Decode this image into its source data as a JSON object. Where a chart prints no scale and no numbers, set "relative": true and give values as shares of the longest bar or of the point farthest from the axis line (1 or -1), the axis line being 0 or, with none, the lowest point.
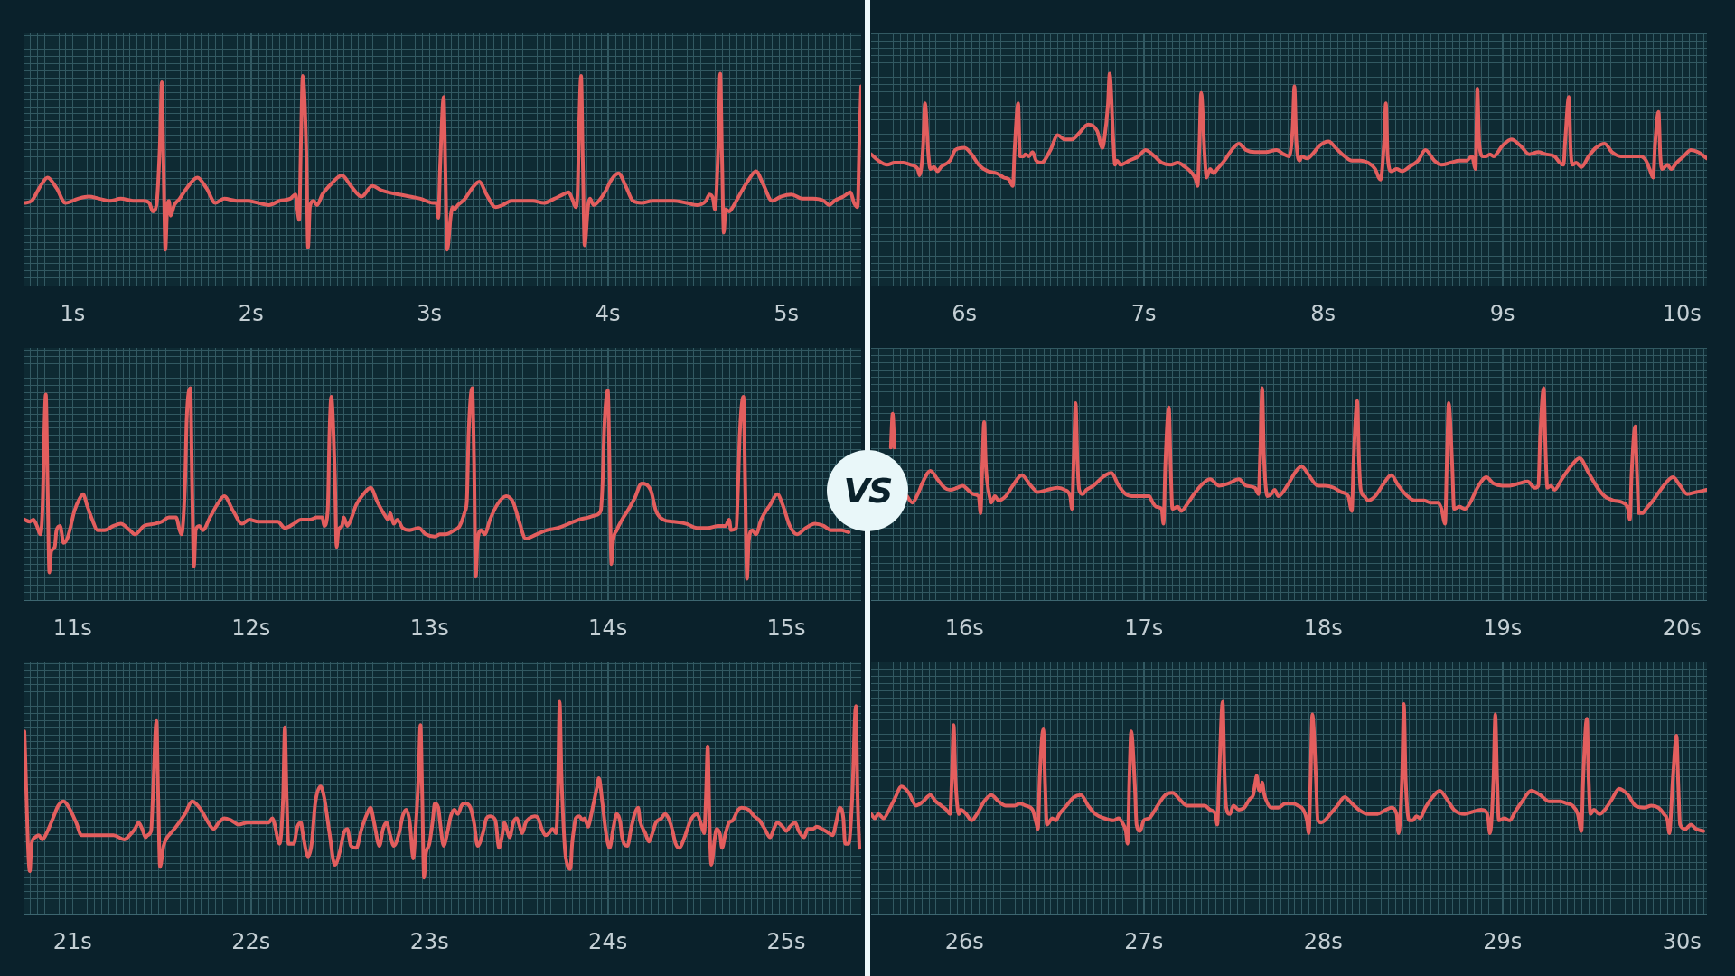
{
  "chart_data": [
    {
      "type": "line",
      "color": "#e35e5e",
      "relative": true,
      "grid": true,
      "xlim": [
        0.73,
        5.42
      ],
      "xticks": [
        {
          "value": 1,
          "label": "1s"
        },
        {
          "value": 2,
          "label": "2s"
        },
        {
          "value": 3,
          "label": "3s"
        },
        {
          "value": 4,
          "label": "4s"
        },
        {
          "value": 5,
          "label": "5s"
        }
      ],
      "x": [
        0.73,
        0.77,
        0.82,
        0.86,
        0.91,
        0.96,
        1.03,
        1.09,
        1.15,
        1.21,
        1.27,
        1.34,
        1.4,
        1.43,
        1.45,
        1.47,
        1.49,
        1.5,
        1.51,
        1.52,
        1.53,
        1.54,
        1.55,
        1.57,
        1.6,
        1.64,
        1.7,
        1.75,
        1.8,
        1.85,
        1.92,
        1.98,
        2.04,
        2.1,
        2.16,
        2.22,
        2.25,
        2.26,
        2.27,
        2.28,
        2.29,
        2.31,
        2.32,
        2.33,
        2.35,
        2.37,
        2.4,
        2.45,
        2.51,
        2.56,
        2.62,
        2.68,
        2.73,
        2.77,
        2.83,
        2.89,
        2.95,
        3.02,
        3.04,
        3.05,
        3.06,
        3.08,
        3.09,
        3.1,
        3.12,
        3.13,
        3.14,
        3.16,
        3.2,
        3.24,
        3.28,
        3.32,
        3.37,
        3.41,
        3.46,
        3.52,
        3.58,
        3.64,
        3.7,
        3.75,
        3.78,
        3.8,
        3.82,
        3.83,
        3.84,
        3.85,
        3.86,
        3.87,
        3.89,
        3.9,
        3.92,
        3.95,
        3.99,
        4.02,
        4.06,
        4.1,
        4.14,
        4.19,
        4.25,
        4.31,
        4.37,
        4.44,
        4.5,
        4.55,
        4.57,
        4.59,
        4.6,
        4.62,
        4.63,
        4.64,
        4.65,
        4.66,
        4.68,
        4.7,
        4.74,
        4.79,
        4.83,
        4.87,
        4.92,
        4.97,
        5.03,
        5.09,
        5.15,
        5.21,
        5.24,
        5.27,
        5.32,
        5.36,
        5.38,
        5.4,
        5.41,
        5.42
      ],
      "values": [
        0.39,
        0.4,
        0.47,
        0.51,
        0.46,
        0.39,
        0.41,
        0.42,
        0.41,
        0.4,
        0.41,
        0.4,
        0.4,
        0.39,
        0.35,
        0.38,
        0.68,
        0.96,
        0.56,
        0.17,
        0.36,
        0.4,
        0.33,
        0.38,
        0.41,
        0.46,
        0.51,
        0.46,
        0.39,
        0.41,
        0.4,
        0.4,
        0.39,
        0.38,
        0.4,
        0.41,
        0.43,
        0.36,
        0.31,
        0.68,
        0.99,
        0.63,
        0.18,
        0.37,
        0.4,
        0.38,
        0.43,
        0.48,
        0.52,
        0.47,
        0.42,
        0.47,
        0.45,
        0.44,
        0.43,
        0.42,
        0.41,
        0.39,
        0.39,
        0.32,
        0.56,
        0.89,
        0.53,
        0.17,
        0.33,
        0.37,
        0.36,
        0.38,
        0.41,
        0.46,
        0.49,
        0.43,
        0.37,
        0.38,
        0.4,
        0.4,
        0.4,
        0.39,
        0.41,
        0.43,
        0.44,
        0.41,
        0.37,
        0.43,
        0.78,
        0.99,
        0.58,
        0.19,
        0.38,
        0.41,
        0.38,
        0.4,
        0.45,
        0.5,
        0.53,
        0.47,
        0.4,
        0.39,
        0.4,
        0.4,
        0.4,
        0.39,
        0.38,
        0.4,
        0.43,
        0.41,
        0.36,
        0.68,
        1,
        0.61,
        0.25,
        0.36,
        0.35,
        0.37,
        0.43,
        0.5,
        0.54,
        0.48,
        0.4,
        0.42,
        0.43,
        0.41,
        0.41,
        0.4,
        0.38,
        0.4,
        0.42,
        0.44,
        0.39,
        0.37,
        0.68,
        0.94
      ]
    },
    {
      "type": "line",
      "color": "#e35e5e",
      "relative": true,
      "grid": true,
      "xlim": [
        5.48,
        10.14
      ],
      "xticks": [
        {
          "value": 6,
          "label": "6s"
        },
        {
          "value": 7,
          "label": "7s"
        },
        {
          "value": 8,
          "label": "8s"
        },
        {
          "value": 9,
          "label": "9s"
        },
        {
          "value": 10,
          "label": "10s"
        }
      ],
      "x": [
        5.48,
        5.52,
        5.57,
        5.61,
        5.66,
        5.7,
        5.74,
        5.75,
        5.77,
        5.78,
        5.8,
        5.81,
        5.83,
        5.85,
        5.87,
        5.92,
        5.95,
        6.0,
        6.04,
        6.08,
        6.13,
        6.18,
        6.22,
        6.25,
        6.27,
        6.28,
        6.3,
        6.31,
        6.33,
        6.34,
        6.36,
        6.38,
        6.4,
        6.43,
        6.48,
        6.52,
        6.56,
        6.6,
        6.64,
        6.69,
        6.74,
        6.77,
        6.78,
        6.8,
        6.81,
        6.83,
        6.84,
        6.85,
        6.87,
        6.92,
        6.97,
        7.01,
        7.06,
        7.1,
        7.15,
        7.19,
        7.23,
        7.27,
        7.29,
        7.3,
        7.31,
        7.32,
        7.34,
        7.35,
        7.37,
        7.39,
        7.41,
        7.45,
        7.49,
        7.53,
        7.57,
        7.62,
        7.68,
        7.74,
        7.78,
        7.81,
        7.83,
        7.84,
        7.85,
        7.87,
        7.88,
        7.91,
        7.94,
        7.98,
        8.03,
        8.07,
        8.12,
        8.16,
        8.21,
        8.25,
        8.29,
        8.31,
        8.32,
        8.34,
        8.35,
        8.36,
        8.38,
        8.41,
        8.44,
        8.48,
        8.53,
        8.57,
        8.62,
        8.66,
        8.71,
        8.76,
        8.8,
        8.83,
        8.85,
        8.86,
        8.87,
        8.89,
        8.91,
        8.93,
        8.95,
        9.0,
        9.05,
        9.1,
        9.15,
        9.2,
        9.24,
        9.29,
        9.32,
        9.34,
        9.35,
        9.37,
        9.38,
        9.39,
        9.41,
        9.44,
        9.48,
        9.52,
        9.57,
        9.61,
        9.66,
        9.71,
        9.77,
        9.8,
        9.82,
        9.84,
        9.85,
        9.87,
        9.88,
        9.89,
        9.92,
        9.94,
        9.97,
        10.01,
        10.05,
        10.09,
        10.14
      ],
      "values": [
        0.62,
        0.59,
        0.57,
        0.58,
        0.58,
        0.57,
        0.55,
        0.52,
        0.66,
        0.86,
        0.61,
        0.55,
        0.56,
        0.54,
        0.56,
        0.59,
        0.64,
        0.65,
        0.62,
        0.57,
        0.54,
        0.53,
        0.51,
        0.5,
        0.47,
        0.64,
        0.86,
        0.61,
        0.61,
        0.62,
        0.61,
        0.63,
        0.59,
        0.58,
        0.64,
        0.71,
        0.69,
        0.69,
        0.72,
        0.76,
        0.73,
        0.65,
        0.69,
        0.85,
        1,
        0.69,
        0.57,
        0.59,
        0.57,
        0.59,
        0.61,
        0.64,
        0.61,
        0.58,
        0.57,
        0.58,
        0.56,
        0.53,
        0.5,
        0.47,
        0.66,
        0.91,
        0.61,
        0.51,
        0.55,
        0.53,
        0.55,
        0.59,
        0.64,
        0.67,
        0.64,
        0.63,
        0.63,
        0.64,
        0.62,
        0.61,
        0.74,
        0.94,
        0.69,
        0.59,
        0.61,
        0.6,
        0.62,
        0.66,
        0.68,
        0.65,
        0.61,
        0.59,
        0.59,
        0.58,
        0.55,
        0.51,
        0.5,
        0.68,
        0.86,
        0.61,
        0.54,
        0.55,
        0.54,
        0.56,
        0.59,
        0.64,
        0.59,
        0.57,
        0.58,
        0.59,
        0.59,
        0.61,
        0.55,
        0.93,
        0.68,
        0.61,
        0.61,
        0.62,
        0.61,
        0.66,
        0.69,
        0.66,
        0.62,
        0.63,
        0.62,
        0.61,
        0.58,
        0.57,
        0.69,
        0.89,
        0.64,
        0.57,
        0.58,
        0.56,
        0.61,
        0.65,
        0.67,
        0.63,
        0.61,
        0.61,
        0.61,
        0.59,
        0.55,
        0.51,
        0.66,
        0.82,
        0.61,
        0.55,
        0.57,
        0.55,
        0.58,
        0.61,
        0.64,
        0.63,
        0.6
      ]
    },
    {
      "type": "line",
      "color": "#e35e5e",
      "relative": true,
      "grid": true,
      "xlim": [
        10.73,
        15.42
      ],
      "xticks": [
        {
          "value": 11,
          "label": "11s"
        },
        {
          "value": 12,
          "label": "12s"
        },
        {
          "value": 13,
          "label": "13s"
        },
        {
          "value": 14,
          "label": "14s"
        },
        {
          "value": 15,
          "label": "15s"
        }
      ],
      "annotations": [
        "VS"
      ],
      "x": [
        10.73,
        10.76,
        10.78,
        10.8,
        10.82,
        10.83,
        10.85,
        10.86,
        10.87,
        10.88,
        10.9,
        10.91,
        10.93,
        10.95,
        10.97,
        10.99,
        11.01,
        11.04,
        11.06,
        11.08,
        11.11,
        11.14,
        11.18,
        11.23,
        11.27,
        11.32,
        11.35,
        11.4,
        11.46,
        11.5,
        11.54,
        11.58,
        11.6,
        11.61,
        11.63,
        11.64,
        11.66,
        11.67,
        11.68,
        11.69,
        11.71,
        11.73,
        11.77,
        11.81,
        11.85,
        11.9,
        11.95,
        11.99,
        12.04,
        12.1,
        12.15,
        12.19,
        12.24,
        12.28,
        12.33,
        12.37,
        12.4,
        12.41,
        12.43,
        12.44,
        12.45,
        12.47,
        12.48,
        12.49,
        12.51,
        12.52,
        12.54,
        12.56,
        12.59,
        12.63,
        12.67,
        12.71,
        12.75,
        12.77,
        12.78,
        12.8,
        12.82,
        12.85,
        12.89,
        12.94,
        12.98,
        13.03,
        13.06,
        13.09,
        13.14,
        13.17,
        13.2,
        13.21,
        13.22,
        13.24,
        13.25,
        13.26,
        13.27,
        13.29,
        13.31,
        13.34,
        13.38,
        13.43,
        13.47,
        13.5,
        13.54,
        13.6,
        13.66,
        13.72,
        13.78,
        13.84,
        13.89,
        13.93,
        13.96,
        13.97,
        13.98,
        14.0,
        14.01,
        14.02,
        14.03,
        14.05,
        14.08,
        14.11,
        14.15,
        14.19,
        14.24,
        14.27,
        14.31,
        14.37,
        14.44,
        14.5,
        14.56,
        14.62,
        14.66,
        14.68,
        14.69,
        14.72,
        14.73,
        14.74,
        14.76,
        14.77,
        14.78,
        14.79,
        14.81,
        14.83,
        14.86,
        14.91,
        14.95,
        14.98,
        15.02,
        15.06,
        15.11,
        15.16,
        15.21,
        15.25,
        15.31,
        15.35
      ],
      "values": [
        0.38,
        0.37,
        0.38,
        0.35,
        0.31,
        0.4,
        0.97,
        0.54,
        0.13,
        0.23,
        0.25,
        0.33,
        0.35,
        0.27,
        0.29,
        0.35,
        0.42,
        0.48,
        0.5,
        0.45,
        0.38,
        0.33,
        0.33,
        0.35,
        0.36,
        0.33,
        0.31,
        0.35,
        0.36,
        0.37,
        0.39,
        0.39,
        0.33,
        0.31,
        0.54,
        0.86,
        1,
        0.54,
        0.16,
        0.33,
        0.35,
        0.33,
        0.39,
        0.45,
        0.49,
        0.42,
        0.36,
        0.38,
        0.37,
        0.37,
        0.37,
        0.34,
        0.36,
        0.38,
        0.38,
        0.39,
        0.39,
        0.35,
        0.42,
        0.79,
        0.96,
        0.59,
        0.25,
        0.33,
        0.35,
        0.39,
        0.35,
        0.38,
        0.45,
        0.5,
        0.53,
        0.46,
        0.4,
        0.38,
        0.41,
        0.36,
        0.38,
        0.34,
        0.33,
        0.34,
        0.31,
        0.3,
        0.31,
        0.31,
        0.33,
        0.35,
        0.42,
        0.47,
        0.79,
        1,
        0.67,
        0.11,
        0.28,
        0.33,
        0.31,
        0.38,
        0.45,
        0.49,
        0.46,
        0.38,
        0.29,
        0.31,
        0.33,
        0.34,
        0.36,
        0.38,
        0.39,
        0.4,
        0.42,
        0.54,
        0.81,
        0.99,
        0.62,
        0.17,
        0.28,
        0.33,
        0.38,
        0.42,
        0.48,
        0.55,
        0.52,
        0.42,
        0.38,
        0.37,
        0.36,
        0.34,
        0.34,
        0.35,
        0.35,
        0.38,
        0.33,
        0.34,
        0.54,
        0.79,
        0.96,
        0.54,
        0.1,
        0.28,
        0.33,
        0.31,
        0.38,
        0.45,
        0.5,
        0.45,
        0.35,
        0.31,
        0.34,
        0.36,
        0.35,
        0.33,
        0.33,
        0.32
      ]
    },
    {
      "type": "line",
      "color": "#e35e5e",
      "relative": true,
      "grid": true,
      "xlim": [
        15.48,
        20.14
      ],
      "xticks": [
        {
          "value": 16,
          "label": "16s"
        },
        {
          "value": 17,
          "label": "17s"
        },
        {
          "value": 18,
          "label": "18s"
        },
        {
          "value": 19,
          "label": "19s"
        },
        {
          "value": 20,
          "label": "20s"
        }
      ],
      "x": [
        15.59,
        15.6,
        15.61,
        15.64,
        15.68,
        15.71,
        15.74,
        15.77,
        15.81,
        15.85,
        15.89,
        15.92,
        15.96,
        15.99,
        16.02,
        16.05,
        16.08,
        16.09,
        16.1,
        16.11,
        16.12,
        16.14,
        16.15,
        16.17,
        16.19,
        16.23,
        16.27,
        16.32,
        16.37,
        16.41,
        16.46,
        16.52,
        16.56,
        16.59,
        16.6,
        16.61,
        16.62,
        16.63,
        16.64,
        16.66,
        16.68,
        16.72,
        16.77,
        16.82,
        16.86,
        16.9,
        16.95,
        17.0,
        17.03,
        17.05,
        17.07,
        17.1,
        17.11,
        17.12,
        17.14,
        17.15,
        17.16,
        17.19,
        17.21,
        17.24,
        17.28,
        17.33,
        17.37,
        17.42,
        17.47,
        17.53,
        17.57,
        17.62,
        17.64,
        17.65,
        17.66,
        17.67,
        17.69,
        17.71,
        17.73,
        17.75,
        17.8,
        17.85,
        17.88,
        17.92,
        17.97,
        18.01,
        18.06,
        18.1,
        18.14,
        18.16,
        18.17,
        18.19,
        18.2,
        18.21,
        18.23,
        18.25,
        18.29,
        18.33,
        18.38,
        18.42,
        18.47,
        18.51,
        18.56,
        18.6,
        18.64,
        18.66,
        18.68,
        18.69,
        18.7,
        18.72,
        18.73,
        18.76,
        18.79,
        18.82,
        18.86,
        18.91,
        18.95,
        19.0,
        19.04,
        19.09,
        19.14,
        19.18,
        19.2,
        19.21,
        19.23,
        19.24,
        19.25,
        19.27,
        19.29,
        19.33,
        19.38,
        19.43,
        19.48,
        19.53,
        19.57,
        19.62,
        19.67,
        19.7,
        19.71,
        19.72,
        19.74,
        19.75,
        19.76,
        19.78,
        19.8,
        19.84,
        19.89,
        19.95,
        19.99,
        20.03,
        20.08,
        20.14
      ],
      "values": [
        0.72,
        0.88,
        0.72,
        null,
        0.49,
        0.46,
        0.5,
        0.56,
        0.61,
        0.57,
        0.53,
        0.52,
        0.53,
        0.54,
        0.52,
        0.5,
        0.49,
        0.41,
        0.63,
        0.84,
        0.63,
        0.49,
        0.46,
        0.49,
        0.47,
        0.49,
        0.54,
        0.59,
        0.54,
        0.51,
        0.52,
        0.53,
        0.52,
        0.49,
        0.43,
        0.68,
        0.93,
        0.66,
        0.52,
        0.5,
        0.52,
        0.54,
        0.58,
        0.6,
        0.54,
        0.5,
        0.49,
        0.49,
        0.49,
        0.46,
        0.44,
        0.43,
        0.36,
        0.63,
        0.91,
        0.63,
        0.43,
        0.44,
        0.42,
        0.45,
        0.5,
        0.55,
        0.57,
        0.54,
        0.55,
        0.57,
        0.54,
        0.53,
        0.5,
        0.71,
        1,
        0.68,
        0.49,
        0.5,
        0.52,
        0.49,
        0.54,
        0.61,
        0.63,
        0.59,
        0.54,
        0.54,
        0.53,
        0.51,
        0.49,
        0.42,
        0.66,
        0.94,
        0.66,
        0.52,
        0.49,
        0.47,
        0.49,
        0.54,
        0.59,
        0.54,
        0.49,
        0.47,
        0.47,
        0.46,
        0.46,
        0.43,
        0.36,
        0.66,
        0.93,
        0.63,
        0.43,
        0.44,
        0.43,
        0.46,
        0.53,
        0.58,
        0.55,
        0.54,
        0.54,
        0.55,
        0.56,
        0.53,
        0.54,
        0.77,
        1,
        0.71,
        0.53,
        0.54,
        0.52,
        0.57,
        0.63,
        0.67,
        0.6,
        0.53,
        0.49,
        0.47,
        0.46,
        0.43,
        0.38,
        0.6,
        0.82,
        0.6,
        0.41,
        0.41,
        0.43,
        0.47,
        0.53,
        0.58,
        0.54,
        0.5,
        0.51,
        0.52
      ]
    },
    {
      "type": "line",
      "color": "#e35e5e",
      "relative": true,
      "grid": true,
      "xlim": [
        20.73,
        25.42
      ],
      "xticks": [
        {
          "value": 21,
          "label": "21s"
        },
        {
          "value": 22,
          "label": "22s"
        },
        {
          "value": 23,
          "label": "23s"
        },
        {
          "value": 24,
          "label": "24s"
        },
        {
          "value": 25,
          "label": "25s"
        }
      ],
      "x": [
        20.73,
        20.76,
        20.77,
        20.79,
        20.81,
        20.83,
        20.86,
        20.89,
        20.92,
        20.95,
        20.98,
        21.02,
        21.05,
        21.11,
        21.17,
        21.23,
        21.29,
        21.32,
        21.35,
        21.37,
        21.39,
        21.41,
        21.42,
        21.44,
        21.45,
        21.47,
        21.48,
        21.49,
        21.51,
        21.53,
        21.55,
        21.58,
        21.63,
        21.67,
        21.72,
        21.76,
        21.79,
        21.82,
        21.85,
        21.89,
        21.93,
        21.98,
        22.04,
        22.1,
        22.12,
        22.13,
        22.16,
        22.18,
        22.19,
        22.2,
        22.21,
        22.24,
        22.26,
        22.28,
        22.29,
        22.32,
        22.34,
        22.36,
        22.39,
        22.41,
        22.44,
        22.47,
        22.5,
        22.52,
        22.54,
        22.56,
        22.59,
        22.62,
        22.65,
        22.67,
        22.69,
        22.72,
        22.74,
        22.76,
        22.78,
        22.8,
        22.83,
        22.85,
        22.87,
        22.89,
        22.91,
        22.92,
        22.94,
        22.95,
        22.96,
        22.97,
        22.98,
        23.0,
        23.02,
        23.03,
        23.05,
        23.06,
        23.08,
        23.1,
        23.12,
        23.14,
        23.16,
        23.18,
        23.2,
        23.23,
        23.25,
        23.27,
        23.3,
        23.32,
        23.34,
        23.37,
        23.39,
        23.41,
        23.42,
        23.44,
        23.45,
        23.47,
        23.49,
        23.5,
        23.52,
        23.54,
        23.56,
        23.59,
        23.61,
        23.63,
        23.65,
        23.67,
        23.69,
        23.71,
        23.72,
        23.73,
        23.74,
        23.76,
        23.77,
        23.79,
        23.8,
        23.81,
        23.82,
        23.84,
        23.86,
        23.87,
        23.89,
        23.9,
        23.92,
        23.94,
        23.95,
        23.97,
        23.99,
        24.01,
        24.03,
        24.05,
        24.07,
        24.08,
        24.11,
        24.13,
        24.15,
        24.17,
        24.18,
        24.21,
        24.23,
        24.25,
        24.27,
        24.3,
        24.32,
        24.34,
        24.36,
        24.38,
        24.4,
        24.43,
        24.45,
        24.47,
        24.5,
        24.52,
        24.54,
        24.55,
        24.56,
        24.57,
        24.58,
        24.6,
        24.61,
        24.63,
        24.64,
        24.66,
        24.68,
        24.7,
        24.73,
        24.75,
        24.79,
        24.82,
        24.85,
        24.88,
        24.91,
        24.93,
        24.95,
        24.98,
        25.0,
        25.02,
        25.05,
        25.07,
        25.1,
        25.12,
        25.15,
        25.17,
        25.2,
        25.24,
        25.26,
        25.28,
        25.3,
        25.32,
        25.33,
        25.35,
        25.37,
        25.39,
        25.4,
        25.41
      ],
      "values": [
        0.86,
        0.2,
        0.33,
        0.36,
        0.37,
        0.35,
        0.39,
        0.45,
        0.51,
        0.53,
        0.5,
        0.43,
        0.37,
        0.37,
        0.37,
        0.37,
        0.35,
        0.37,
        0.4,
        0.43,
        0.4,
        0.36,
        0.37,
        0.39,
        0.55,
        0.91,
        0.55,
        0.22,
        0.32,
        0.36,
        0.38,
        0.41,
        0.47,
        0.53,
        0.49,
        0.43,
        0.4,
        0.43,
        0.45,
        0.44,
        0.42,
        0.43,
        0.43,
        0.43,
        0.45,
        0.43,
        0.33,
        0.55,
        0.88,
        0.55,
        0.33,
        0.33,
        0.41,
        0.43,
        0.38,
        0.27,
        0.33,
        0.52,
        0.6,
        0.55,
        0.38,
        0.23,
        0.3,
        0.38,
        0.4,
        0.32,
        0.31,
        0.4,
        0.47,
        0.5,
        0.43,
        0.32,
        0.4,
        0.43,
        0.37,
        0.32,
        0.38,
        0.46,
        0.49,
        0.43,
        0.26,
        0.36,
        0.66,
        0.89,
        0.55,
        0.17,
        0.28,
        0.33,
        0.45,
        0.52,
        0.5,
        0.43,
        0.32,
        0.38,
        0.46,
        0.49,
        0.47,
        0.51,
        0.52,
        0.5,
        0.43,
        0.32,
        0.38,
        0.45,
        0.46,
        0.44,
        0.31,
        0.38,
        0.43,
        0.38,
        0.36,
        0.43,
        0.45,
        0.43,
        0.38,
        0.43,
        0.45,
        0.46,
        0.45,
        0.4,
        0.37,
        0.38,
        0.4,
        0.38,
        0.57,
        1,
        0.66,
        0.3,
        0.24,
        0.21,
        0.33,
        0.4,
        0.45,
        0.46,
        0.44,
        0.45,
        0.41,
        0.44,
        0.52,
        0.6,
        0.64,
        0.52,
        0.38,
        0.31,
        0.4,
        0.47,
        0.43,
        0.36,
        0.32,
        0.4,
        0.47,
        0.5,
        0.44,
        0.38,
        0.34,
        0.38,
        0.43,
        0.45,
        0.47,
        0.45,
        0.4,
        0.33,
        0.31,
        0.36,
        0.41,
        0.45,
        0.47,
        0.43,
        0.38,
        0.55,
        0.79,
        0.43,
        0.23,
        0.36,
        0.4,
        0.37,
        0.31,
        0.38,
        0.43,
        0.44,
        0.49,
        0.5,
        0.49,
        0.46,
        0.44,
        0.4,
        0.36,
        0.4,
        0.43,
        0.41,
        0.39,
        0.41,
        0.43,
        0.39,
        0.36,
        0.4,
        0.4,
        0.41,
        0.4,
        0.38,
        0.37,
        0.43,
        0.5,
        0.45,
        0.33,
        0.33,
        0.55,
        0.98,
        0.55,
        0.31
      ]
    },
    {
      "type": "line",
      "color": "#e35e5e",
      "relative": true,
      "grid": true,
      "xlim": [
        25.48,
        30.14
      ],
      "xticks": [
        {
          "value": 26,
          "label": "26s"
        },
        {
          "value": 27,
          "label": "27s"
        },
        {
          "value": 28,
          "label": "28s"
        },
        {
          "value": 29,
          "label": "29s"
        },
        {
          "value": 30,
          "label": "30s"
        }
      ],
      "x": [
        25.48,
        25.5,
        25.52,
        25.55,
        25.58,
        25.61,
        25.65,
        25.69,
        25.73,
        25.77,
        25.81,
        25.84,
        25.87,
        25.9,
        25.92,
        25.93,
        25.94,
        25.95,
        25.97,
        25.98,
        26.01,
        26.04,
        26.07,
        26.11,
        26.15,
        26.19,
        26.23,
        26.28,
        26.31,
        26.34,
        26.38,
        26.4,
        26.41,
        26.42,
        26.44,
        26.45,
        26.46,
        26.49,
        26.51,
        26.53,
        26.57,
        26.61,
        26.65,
        26.69,
        26.73,
        26.78,
        26.83,
        26.86,
        26.88,
        26.9,
        26.91,
        26.92,
        26.93,
        26.95,
        26.96,
        26.98,
        27.0,
        27.03,
        27.07,
        27.12,
        27.16,
        27.2,
        27.24,
        27.29,
        27.34,
        27.37,
        27.4,
        27.41,
        27.42,
        27.44,
        27.45,
        27.46,
        27.48,
        27.5,
        27.53,
        27.56,
        27.59,
        27.61,
        27.62,
        27.63,
        27.64,
        27.65,
        27.66,
        27.67,
        27.68,
        27.71,
        27.75,
        27.79,
        27.83,
        27.86,
        27.89,
        27.91,
        27.92,
        27.93,
        27.94,
        27.96,
        27.97,
        27.99,
        28.01,
        28.04,
        28.08,
        28.12,
        28.16,
        28.2,
        28.25,
        28.3,
        28.35,
        28.38,
        28.41,
        28.42,
        28.44,
        28.45,
        28.46,
        28.48,
        28.5,
        28.52,
        28.54,
        28.57,
        28.61,
        28.65,
        28.69,
        28.73,
        28.79,
        28.83,
        28.88,
        28.91,
        28.92,
        28.93,
        28.95,
        28.96,
        28.97,
        28.98,
        29.01,
        29.04,
        29.07,
        29.11,
        29.16,
        29.21,
        29.26,
        29.32,
        29.36,
        29.39,
        29.42,
        29.44,
        29.45,
        29.47,
        29.48,
        29.49,
        29.51,
        29.54,
        29.57,
        29.61,
        29.65,
        29.7,
        29.74,
        29.79,
        29.83,
        29.87,
        29.9,
        29.92,
        29.93,
        29.95,
        29.97,
        29.98,
        29.99,
        30.02,
        30.05,
        30.08,
        30.12
      ],
      "values": [
        0.47,
        0.45,
        0.47,
        0.45,
        0.49,
        0.54,
        0.6,
        0.57,
        0.51,
        0.53,
        0.56,
        0.53,
        0.51,
        0.49,
        0.47,
        0.64,
        0.89,
        0.64,
        0.47,
        0.49,
        0.47,
        0.44,
        0.47,
        0.53,
        0.56,
        0.53,
        0.51,
        0.51,
        0.52,
        0.51,
        0.49,
        0.43,
        0.4,
        0.64,
        0.87,
        0.61,
        0.42,
        0.45,
        0.44,
        0.47,
        0.51,
        0.55,
        0.56,
        0.51,
        0.47,
        0.45,
        0.44,
        0.45,
        0.43,
        0.39,
        0.33,
        0.64,
        0.86,
        0.61,
        0.42,
        0.39,
        0.44,
        0.45,
        0.5,
        0.56,
        0.57,
        0.54,
        0.51,
        0.51,
        0.51,
        0.49,
        0.47,
        0.42,
        0.64,
        1,
        0.67,
        0.5,
        0.47,
        0.51,
        0.49,
        0.5,
        0.54,
        0.56,
        0.61,
        0.65,
        0.59,
        0.58,
        0.62,
        0.57,
        0.54,
        0.5,
        0.5,
        0.52,
        0.52,
        0.51,
        0.49,
        0.44,
        0.38,
        0.64,
        0.94,
        0.64,
        0.44,
        0.43,
        0.44,
        0.47,
        0.51,
        0.55,
        0.52,
        0.49,
        0.47,
        0.47,
        0.49,
        0.5,
        0.47,
        0.38,
        0.64,
        0.99,
        0.64,
        0.44,
        0.44,
        0.46,
        0.45,
        0.5,
        0.55,
        0.58,
        0.54,
        0.49,
        0.47,
        0.48,
        0.49,
        0.48,
        0.45,
        0.38,
        0.64,
        0.94,
        0.64,
        0.44,
        0.45,
        0.44,
        0.48,
        0.53,
        0.58,
        0.56,
        0.53,
        0.53,
        0.52,
        0.51,
        0.47,
        0.39,
        0.64,
        0.92,
        0.64,
        0.47,
        0.49,
        0.47,
        0.49,
        0.54,
        0.59,
        0.56,
        0.51,
        0.5,
        0.51,
        0.5,
        0.47,
        0.44,
        0.38,
        0.64,
        0.84,
        0.61,
        0.42,
        0.4,
        0.42,
        0.4,
        0.39
      ]
    }
  ]
}
